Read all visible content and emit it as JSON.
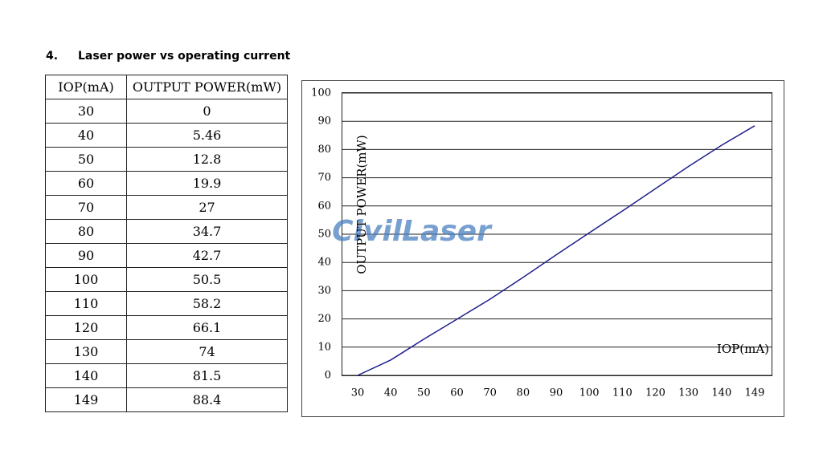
{
  "heading": {
    "number": "4.",
    "title": "Laser power vs operating current"
  },
  "table": {
    "header": [
      "IOP(mA)",
      "OUTPUT POWER(mW)"
    ],
    "rows": [
      [
        30,
        0
      ],
      [
        40,
        5.46
      ],
      [
        50,
        12.8
      ],
      [
        60,
        19.9
      ],
      [
        70,
        27
      ],
      [
        80,
        34.7
      ],
      [
        90,
        42.7
      ],
      [
        100,
        50.5
      ],
      [
        110,
        58.2
      ],
      [
        120,
        66.1
      ],
      [
        130,
        74
      ],
      [
        140,
        81.5
      ],
      [
        149,
        88.4
      ]
    ]
  },
  "chart_data": {
    "type": "line",
    "categories": [
      "30",
      "40",
      "50",
      "60",
      "70",
      "80",
      "90",
      "100",
      "110",
      "120",
      "130",
      "140",
      "149"
    ],
    "values": [
      0,
      5.46,
      12.8,
      19.9,
      27,
      34.7,
      42.7,
      50.5,
      58.2,
      66.1,
      74,
      81.5,
      88.4
    ],
    "color": "#1f1f8f",
    "ylim": [
      0,
      100
    ],
    "yticks": [
      0,
      10,
      20,
      30,
      40,
      50,
      60,
      70,
      80,
      90,
      100
    ],
    "grid": true,
    "x_label": "IOP(mA)",
    "y_label": "OUTPUT POWER(mW)",
    "watermark": "CivilLaser"
  }
}
